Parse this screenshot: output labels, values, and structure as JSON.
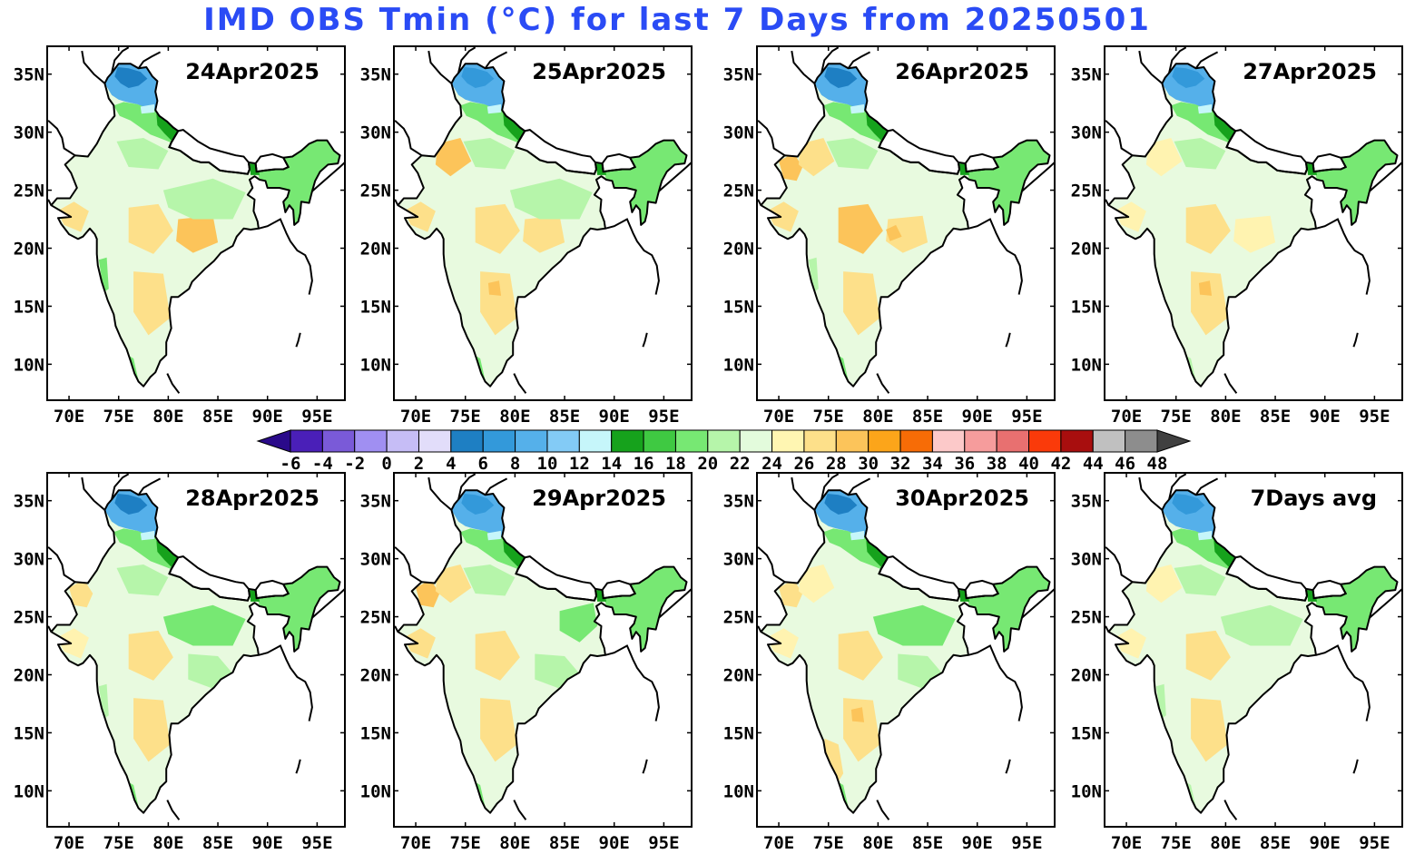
{
  "title": "IMD OBS Tmin (°C) for last 7 Days from 20250501",
  "title_color": "#2a4bf5",
  "panels": [
    {
      "label": "24Apr2025",
      "variant": 0
    },
    {
      "label": "25Apr2025",
      "variant": 1
    },
    {
      "label": "26Apr2025",
      "variant": 2
    },
    {
      "label": "27Apr2025",
      "variant": 3
    },
    {
      "label": "28Apr2025",
      "variant": 4
    },
    {
      "label": "29Apr2025",
      "variant": 5
    },
    {
      "label": "30Apr2025",
      "variant": 6
    },
    {
      "label": "7Days avg",
      "variant": 7
    }
  ],
  "lon_ticks": [
    "70E",
    "75E",
    "80E",
    "85E",
    "90E",
    "95E"
  ],
  "lat_ticks": [
    "35N",
    "30N",
    "25N",
    "20N",
    "15N",
    "10N"
  ],
  "colorbar": {
    "labels": [
      "-6",
      "-4",
      "-2",
      "0",
      "2",
      "4",
      "6",
      "8",
      "10",
      "12",
      "14",
      "16",
      "18",
      "20",
      "22",
      "24",
      "26",
      "28",
      "30",
      "32",
      "34",
      "36",
      "38",
      "40",
      "42",
      "44",
      "46",
      "48"
    ],
    "colors": [
      "#4a1fb8",
      "#7a5ad8",
      "#a08ff2",
      "#c6bdf6",
      "#e2ddfa",
      "#1e7fc3",
      "#3399da",
      "#55b0ea",
      "#83cbf6",
      "#c6f6fa",
      "#16a21c",
      "#3fc942",
      "#77e873",
      "#b6f5aa",
      "#e3fbdc",
      "#fff6b2",
      "#fde08a",
      "#fcc45a",
      "#fca51a",
      "#f76c06",
      "#fcc9c9",
      "#f69c9c",
      "#e87070",
      "#fa3a0a",
      "#a80e0e",
      "#c0c0c0",
      "#8d8d8d"
    ],
    "under_color": "#2a0a8a",
    "over_color": "#404040"
  },
  "map_colors": {
    "land_base": "#e8fadf",
    "warm_light": "#fff3b0",
    "warm": "#fde08a",
    "warm_strong": "#fcc45a",
    "green_light": "#b6f5aa",
    "green": "#77e873",
    "green_dark": "#3fc942",
    "green_darkest": "#16a21c",
    "blue_dark": "#1e7fc3",
    "blue": "#3399da",
    "blue_light": "#55b0ea",
    "blue_pale": "#83cbf6",
    "cyan": "#c6f6fa",
    "border": "#000000"
  }
}
